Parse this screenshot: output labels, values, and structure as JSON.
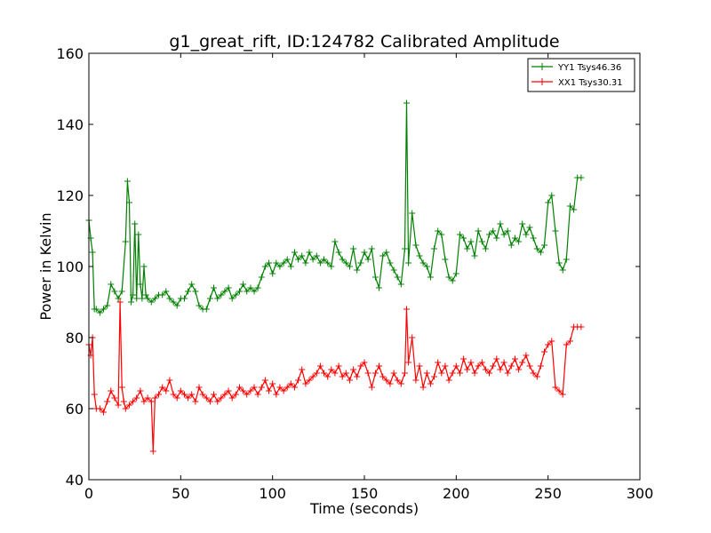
{
  "chart_data": {
    "type": "line",
    "title": "g1_great_rift, ID:124782 Calibrated Amplitude",
    "xlabel": "Time (seconds)",
    "ylabel": "Power in Kelvin",
    "xlim": [
      0,
      300
    ],
    "ylim": [
      40,
      160
    ],
    "xticks": [
      0,
      50,
      100,
      150,
      200,
      250,
      300
    ],
    "yticks": [
      40,
      60,
      80,
      100,
      120,
      140,
      160
    ],
    "xtick_labels": [
      "0",
      "50",
      "100",
      "150",
      "200",
      "250",
      "300"
    ],
    "ytick_labels": [
      "40",
      "60",
      "80",
      "100",
      "120",
      "140",
      "160"
    ],
    "grid": false,
    "legend_position": "top-right",
    "marker": "plus",
    "series": [
      {
        "name": "YY1 Tsys46.36",
        "color": "#008000",
        "x": [
          0,
          1,
          2,
          3,
          4,
          6,
          8,
          10,
          12,
          14,
          16,
          18,
          20,
          21,
          22,
          23,
          24,
          25,
          26,
          27,
          28,
          29,
          30,
          31,
          32,
          34,
          36,
          38,
          40,
          42,
          44,
          46,
          48,
          50,
          52,
          54,
          56,
          58,
          60,
          62,
          64,
          66,
          68,
          70,
          72,
          74,
          76,
          78,
          80,
          82,
          84,
          86,
          88,
          90,
          92,
          94,
          96,
          98,
          100,
          102,
          104,
          106,
          108,
          110,
          112,
          114,
          116,
          118,
          120,
          122,
          124,
          126,
          128,
          130,
          132,
          134,
          136,
          138,
          140,
          142,
          144,
          146,
          148,
          150,
          152,
          154,
          156,
          158,
          160,
          162,
          164,
          166,
          168,
          170,
          172,
          173,
          174,
          176,
          178,
          180,
          182,
          184,
          186,
          188,
          190,
          192,
          194,
          196,
          198,
          200,
          202,
          204,
          206,
          208,
          210,
          212,
          214,
          216,
          218,
          220,
          222,
          224,
          226,
          228,
          230,
          232,
          234,
          236,
          238,
          240,
          242,
          244,
          246,
          248,
          250,
          252,
          254,
          256,
          258,
          260,
          262,
          264,
          266,
          268
        ],
        "y": [
          113,
          108,
          104,
          88,
          88,
          87,
          88,
          89,
          95,
          93,
          91,
          93,
          107,
          124,
          118,
          90,
          92,
          112,
          91,
          109,
          95,
          91,
          100,
          92,
          91,
          90,
          91,
          92,
          92,
          93,
          91,
          90,
          89,
          91,
          91,
          93,
          95,
          93,
          89,
          88,
          88,
          91,
          94,
          91,
          92,
          93,
          94,
          91,
          92,
          93,
          95,
          93,
          94,
          93,
          94,
          97,
          100,
          101,
          98,
          101,
          100,
          101,
          102,
          100,
          104,
          102,
          103,
          101,
          104,
          102,
          103,
          101,
          102,
          101,
          100,
          107,
          104,
          102,
          101,
          100,
          105,
          99,
          101,
          104,
          102,
          105,
          97,
          94,
          103,
          104,
          101,
          99,
          97,
          95,
          105,
          146,
          101,
          115,
          106,
          103,
          101,
          100,
          97,
          105,
          110,
          109,
          102,
          97,
          96,
          98,
          109,
          108,
          105,
          107,
          103,
          110,
          107,
          105,
          109,
          110,
          108,
          112,
          109,
          110,
          106,
          108,
          107,
          112,
          109,
          111,
          108,
          105,
          104,
          106,
          118,
          120,
          110,
          101,
          99,
          102,
          117,
          116,
          125,
          125
        ]
      },
      {
        "name": "XX1 Tsys30.31",
        "color": "#ff0000",
        "x": [
          0,
          1,
          2,
          3,
          4,
          6,
          8,
          10,
          12,
          14,
          16,
          17,
          18,
          19,
          20,
          22,
          24,
          26,
          28,
          30,
          32,
          34,
          35,
          36,
          38,
          40,
          42,
          44,
          46,
          48,
          50,
          52,
          54,
          56,
          58,
          60,
          62,
          64,
          66,
          68,
          70,
          72,
          74,
          76,
          78,
          80,
          82,
          84,
          86,
          88,
          90,
          92,
          94,
          96,
          98,
          100,
          102,
          104,
          106,
          108,
          110,
          112,
          114,
          116,
          118,
          120,
          122,
          124,
          126,
          128,
          130,
          132,
          134,
          136,
          138,
          140,
          142,
          144,
          146,
          148,
          150,
          152,
          154,
          156,
          158,
          160,
          162,
          164,
          166,
          168,
          170,
          172,
          173,
          174,
          176,
          178,
          180,
          182,
          184,
          186,
          188,
          190,
          192,
          194,
          196,
          198,
          200,
          202,
          204,
          206,
          208,
          210,
          212,
          214,
          216,
          218,
          220,
          222,
          224,
          226,
          228,
          230,
          232,
          234,
          236,
          238,
          240,
          242,
          244,
          246,
          248,
          250,
          252,
          254,
          256,
          258,
          260,
          262,
          264,
          266,
          268
        ],
        "y": [
          78,
          75,
          80,
          64,
          60,
          60,
          59,
          62,
          65,
          63,
          61,
          90,
          66,
          62,
          60,
          61,
          62,
          63,
          65,
          62,
          63,
          62,
          48,
          63,
          64,
          66,
          65,
          68,
          64,
          63,
          65,
          64,
          63,
          64,
          62,
          66,
          64,
          63,
          62,
          64,
          62,
          63,
          64,
          65,
          63,
          64,
          66,
          65,
          64,
          65,
          66,
          64,
          66,
          68,
          65,
          67,
          64,
          66,
          65,
          66,
          67,
          66,
          68,
          71,
          67,
          68,
          69,
          70,
          72,
          70,
          69,
          71,
          70,
          72,
          69,
          70,
          68,
          71,
          69,
          72,
          73,
          70,
          66,
          70,
          72,
          69,
          68,
          67,
          70,
          68,
          67,
          70,
          88,
          73,
          80,
          68,
          72,
          66,
          70,
          67,
          69,
          73,
          70,
          72,
          68,
          70,
          72,
          70,
          74,
          71,
          73,
          70,
          72,
          73,
          71,
          70,
          72,
          74,
          71,
          73,
          70,
          72,
          74,
          71,
          73,
          75,
          72,
          70,
          69,
          72,
          76,
          78,
          79,
          66,
          65,
          64,
          78,
          79,
          83,
          83,
          83
        ]
      }
    ]
  }
}
